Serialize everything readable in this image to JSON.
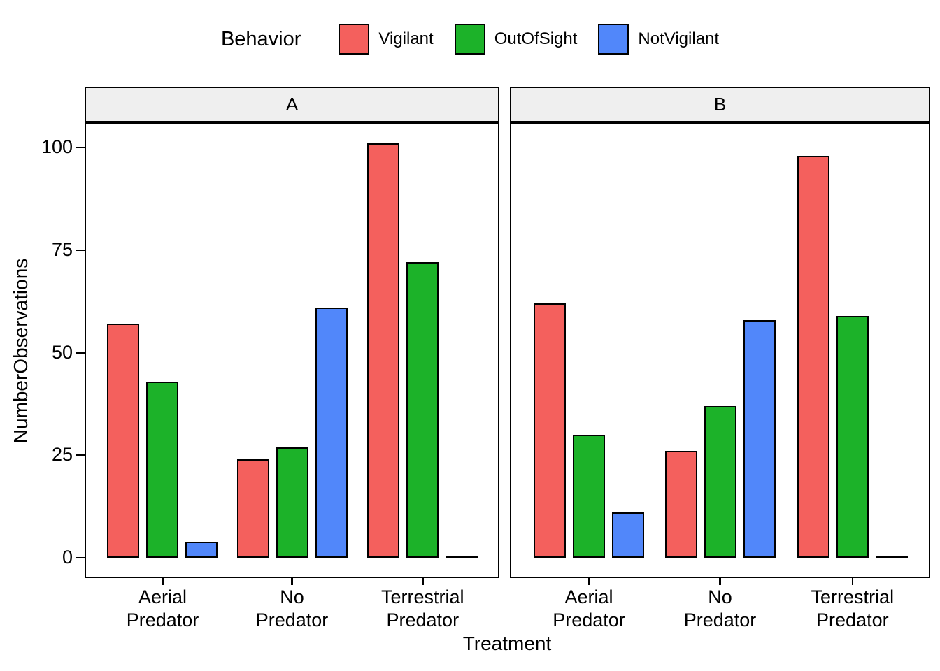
{
  "legend": {
    "title": "Behavior",
    "items": [
      {
        "label": "Vigilant",
        "color": "#F4605D"
      },
      {
        "label": "OutOfSight",
        "color": "#1CB229"
      },
      {
        "label": "NotVigilant",
        "color": "#5187FA"
      }
    ]
  },
  "y_axis": {
    "title": "NumberObservations",
    "ticks": [
      0,
      25,
      50,
      75,
      100
    ]
  },
  "x_axis": {
    "title": "Treatment",
    "categories": [
      "Aerial Predator",
      "No Predator",
      "Terrestrial Predator"
    ],
    "categories_lines": [
      [
        "Aerial",
        "Predator"
      ],
      [
        "No",
        "Predator"
      ],
      [
        "Terrestrial",
        "Predator"
      ]
    ]
  },
  "chart_data": {
    "type": "bar",
    "title": "",
    "xlabel": "Treatment",
    "ylabel": "NumberObservations",
    "ylim": [
      0,
      106
    ],
    "grid": false,
    "legend_position": "top",
    "categories": [
      "Aerial Predator",
      "No Predator",
      "Terrestrial Predator"
    ],
    "series_colors": {
      "Vigilant": "#F4605D",
      "OutOfSight": "#1CB229",
      "NotVigilant": "#5187FA"
    },
    "facets": [
      {
        "label": "A",
        "series": [
          {
            "name": "Vigilant",
            "values": [
              57,
              24,
              101
            ]
          },
          {
            "name": "OutOfSight",
            "values": [
              43,
              27,
              72
            ]
          },
          {
            "name": "NotVigilant",
            "values": [
              4,
              61,
              0
            ]
          }
        ]
      },
      {
        "label": "B",
        "series": [
          {
            "name": "Vigilant",
            "values": [
              62,
              26,
              98
            ]
          },
          {
            "name": "OutOfSight",
            "values": [
              30,
              37,
              59
            ]
          },
          {
            "name": "NotVigilant",
            "values": [
              11,
              58,
              0
            ]
          }
        ]
      }
    ]
  },
  "panel_style": {
    "strip_fill": "#EFEFEF",
    "border_color": "#000000"
  }
}
